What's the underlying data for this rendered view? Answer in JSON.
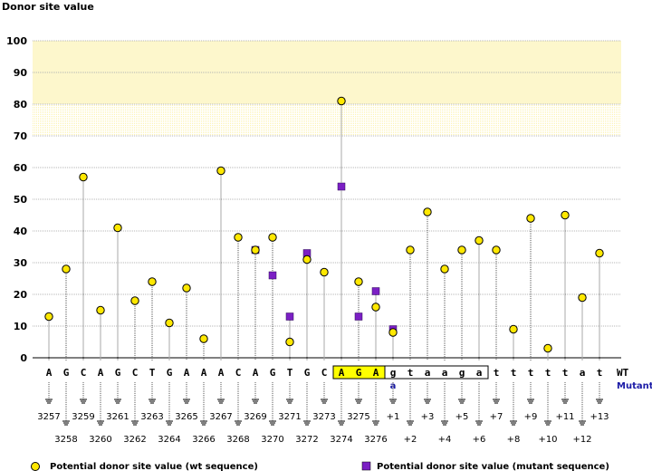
{
  "chart_data": {
    "type": "scatter",
    "title": "",
    "ylabel": "Donor site value",
    "xlabel": "",
    "ylim": [
      0,
      100
    ],
    "yticks": [
      0,
      10,
      20,
      30,
      40,
      50,
      60,
      70,
      80,
      90,
      100
    ],
    "highlight_bands": [
      {
        "from": 80,
        "to": 100,
        "style": "solid",
        "color": "#fdf7cc"
      },
      {
        "from": 70,
        "to": 80,
        "style": "dotted",
        "color": "#fdf3b0"
      }
    ],
    "row_labels": {
      "wt": "WT",
      "mutant": "Mutant"
    },
    "positions": [
      {
        "base": "A",
        "pos": "3257",
        "wt": 13,
        "mut": null
      },
      {
        "base": "G",
        "pos": "3258",
        "wt": 28,
        "mut": null
      },
      {
        "base": "C",
        "pos": "3259",
        "wt": 57,
        "mut": null
      },
      {
        "base": "A",
        "pos": "3260",
        "wt": 15,
        "mut": null
      },
      {
        "base": "G",
        "pos": "3261",
        "wt": 41,
        "mut": null
      },
      {
        "base": "C",
        "pos": "3262",
        "wt": 18,
        "mut": null
      },
      {
        "base": "T",
        "pos": "3263",
        "wt": 24,
        "mut": null
      },
      {
        "base": "G",
        "pos": "3264",
        "wt": 11,
        "mut": null
      },
      {
        "base": "A",
        "pos": "3265",
        "wt": 22,
        "mut": null
      },
      {
        "base": "A",
        "pos": "3266",
        "wt": 6,
        "mut": null
      },
      {
        "base": "A",
        "pos": "3267",
        "wt": 59,
        "mut": null
      },
      {
        "base": "C",
        "pos": "3268",
        "wt": 38,
        "mut": null
      },
      {
        "base": "A",
        "pos": "3269",
        "wt": 34,
        "mut": 34
      },
      {
        "base": "G",
        "pos": "3270",
        "wt": 38,
        "mut": 26
      },
      {
        "base": "T",
        "pos": "3271",
        "wt": 5,
        "mut": 13
      },
      {
        "base": "G",
        "pos": "3272",
        "wt": 31,
        "mut": 33
      },
      {
        "base": "C",
        "pos": "3273",
        "wt": 27,
        "mut": null
      },
      {
        "base": "A",
        "pos": "3274",
        "wt": 81,
        "mut": 54
      },
      {
        "base": "G",
        "pos": "3275",
        "wt": 24,
        "mut": 13
      },
      {
        "base": "A",
        "pos": "3276",
        "wt": 16,
        "mut": 21
      },
      {
        "base": "g",
        "pos": "+1",
        "wt": 8,
        "mut": 9,
        "mutant_base": "a"
      },
      {
        "base": "t",
        "pos": "+2",
        "wt": 34,
        "mut": null
      },
      {
        "base": "a",
        "pos": "+3",
        "wt": 46,
        "mut": null
      },
      {
        "base": "a",
        "pos": "+4",
        "wt": 28,
        "mut": null
      },
      {
        "base": "g",
        "pos": "+5",
        "wt": 34,
        "mut": null
      },
      {
        "base": "a",
        "pos": "+6",
        "wt": 37,
        "mut": null
      },
      {
        "base": "t",
        "pos": "+7",
        "wt": 34,
        "mut": null
      },
      {
        "base": "t",
        "pos": "+8",
        "wt": 9,
        "mut": null
      },
      {
        "base": "t",
        "pos": "+9",
        "wt": 44,
        "mut": null
      },
      {
        "base": "t",
        "pos": "+10",
        "wt": 3,
        "mut": null
      },
      {
        "base": "t",
        "pos": "+11",
        "wt": 45,
        "mut": null
      },
      {
        "base": "a",
        "pos": "+12",
        "wt": 19,
        "mut": null
      },
      {
        "base": "t",
        "pos": "+13",
        "wt": 33,
        "mut": null
      }
    ],
    "highlighted_exon_bases": [
      17,
      18,
      19
    ],
    "boxed_intron_bases": [
      20,
      25
    ],
    "legend": [
      {
        "label": "Potential donor site value (wt sequence)",
        "marker": "circle",
        "color": "#ffe800"
      },
      {
        "label": "Potential donor site value (mutant sequence)",
        "marker": "square",
        "color": "#7b1fc4"
      }
    ]
  }
}
